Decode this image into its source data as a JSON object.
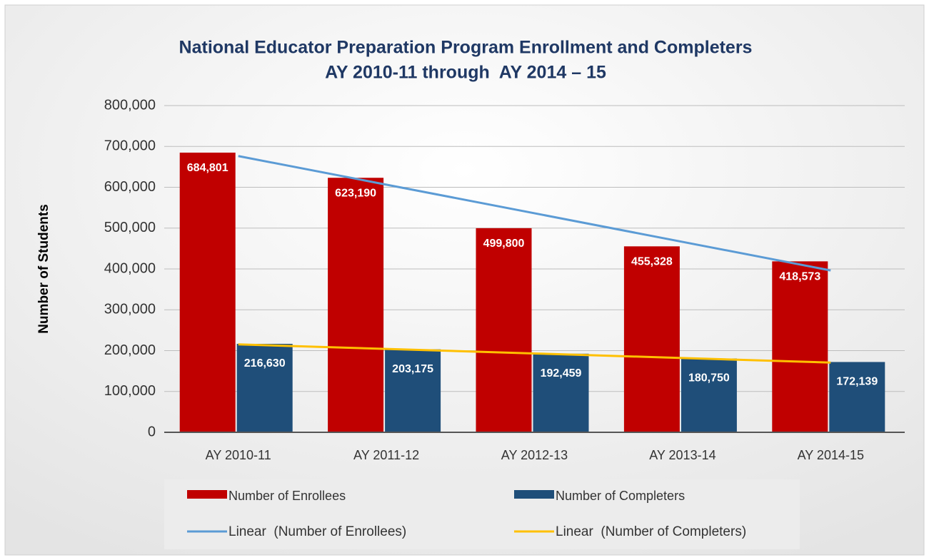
{
  "chart_data": {
    "type": "bar",
    "title": "National Educator Preparation Program Enrollment and Completers",
    "subtitle": "AY 2010-11 through  AY 2014 – 15",
    "y_label": "Number of Students",
    "categories": [
      "AY 2010-11",
      "AY 2011-12",
      "AY 2012-13",
      "AY 2013-14",
      "AY 2014-15"
    ],
    "series": [
      {
        "name": "Number of Enrollees",
        "color": "#c00000",
        "values": [
          684801,
          623190,
          499800,
          455328,
          418573
        ],
        "value_labels": [
          "684,801",
          "623,190",
          "499,800",
          "455,328",
          "418,573"
        ]
      },
      {
        "name": "Number of Completers",
        "color": "#1f4e79",
        "values": [
          216630,
          203175,
          192459,
          180750,
          172139
        ],
        "value_labels": [
          "216,630",
          "203,175",
          "192,459",
          "180,750",
          "172,139"
        ]
      }
    ],
    "trendlines": [
      {
        "name": "Linear  (Number of Enrollees)",
        "color": "#5b9bd5",
        "values": [
          676402,
          606370,
          536338,
          466307,
          396275
        ]
      },
      {
        "name": "Linear  (Number of Completers)",
        "color": "#ffc000",
        "values": [
          215312,
          204171,
          193031,
          181890,
          170749
        ]
      }
    ],
    "ylim": [
      0,
      800000
    ],
    "yticks": [
      0,
      {
        "value": 100000,
        "label": "100,000"
      },
      {
        "value": 200000,
        "label": "200,000"
      },
      {
        "value": 300000,
        "label": "300,000"
      },
      {
        "value": 400000,
        "label": "400,000"
      },
      {
        "value": 500000,
        "label": "500,000"
      },
      {
        "value": 600000,
        "label": "600,000"
      },
      {
        "value": 700000,
        "label": "700,000"
      },
      {
        "value": 800000,
        "label": "800,000"
      }
    ],
    "grid": true
  }
}
